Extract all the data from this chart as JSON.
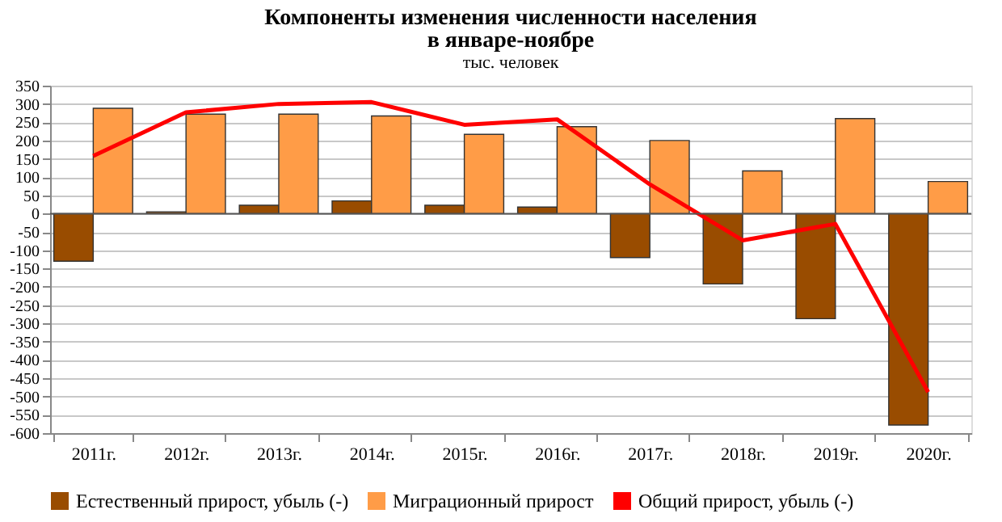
{
  "chart_data": {
    "type": "bar",
    "title": [
      "Компоненты изменения численности населения",
      "в январе-ноябре"
    ],
    "subtitle": "тыс. человек",
    "categories": [
      "2011г.",
      "2012г.",
      "2013г.",
      "2014г.",
      "2015г.",
      "2016г.",
      "2017г.",
      "2018г.",
      "2019г.",
      "2020г."
    ],
    "series": [
      {
        "name": "Естественный прирост, убыль (-)",
        "color": "#994c00",
        "values": [
          -130,
          5,
          23,
          35,
          23,
          18,
          -120,
          -192,
          -287,
          -578
        ]
      },
      {
        "name": "Миграционный прирост",
        "color": "#ff9c47",
        "values": [
          288,
          272,
          272,
          267,
          217,
          238,
          200,
          117,
          260,
          88
        ]
      },
      {
        "name": "Общий прирост, убыль (-)",
        "color": "#ff0000",
        "type": "line",
        "values": [
          158,
          277,
          300,
          305,
          243,
          258,
          80,
          -73,
          -28,
          -488
        ]
      }
    ],
    "ylim": [
      -600,
      350
    ],
    "yticks": [
      -600,
      -550,
      -500,
      -450,
      -400,
      -350,
      -300,
      -250,
      -200,
      -150,
      -100,
      -50,
      0,
      50,
      100,
      150,
      200,
      250,
      300,
      350
    ],
    "grid": "y",
    "legend": "bottom"
  }
}
